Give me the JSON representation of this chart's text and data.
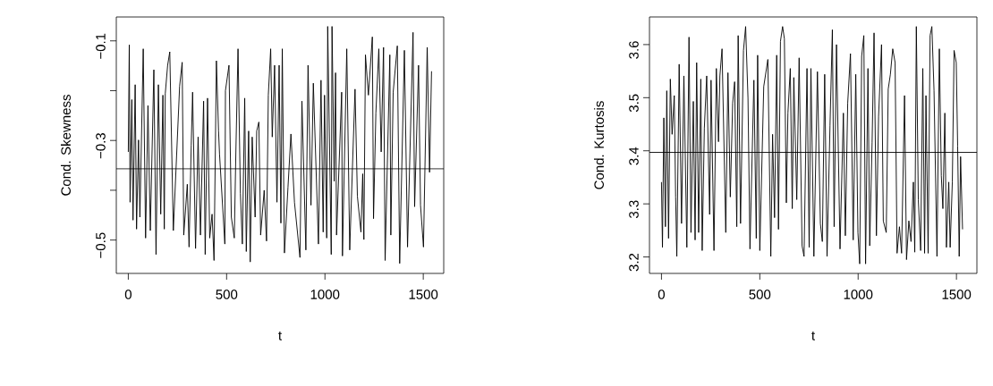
{
  "chart_data": [
    {
      "type": "line",
      "xlabel": "t",
      "ylabel": "Cond. Skewness",
      "color": "#000000",
      "line_style": "solid",
      "marker": "none",
      "xlim": [
        -61,
        1604
      ],
      "ylim": [
        -0.567,
        -0.052
      ],
      "xticks": [
        0,
        500,
        1000,
        1500
      ],
      "yticks": [
        {
          "value": -0.5,
          "label": "−0.5"
        },
        {
          "value": -0.4,
          "label": null
        },
        {
          "value": -0.3,
          "label": "−0.3"
        },
        {
          "value": -0.2,
          "label": null
        },
        {
          "value": -0.1,
          "label": "−0.1"
        }
      ],
      "ref_lines": [
        {
          "axis": "y",
          "value": -0.357
        }
      ],
      "x": [
        0,
        5,
        9,
        18,
        24,
        35,
        42,
        52,
        59,
        76,
        88,
        100,
        112,
        130,
        141,
        153,
        165,
        176,
        183,
        188,
        200,
        211,
        229,
        261,
        274,
        282,
        300,
        309,
        320,
        327,
        342,
        355,
        367,
        383,
        391,
        403,
        414,
        426,
        436,
        448,
        459,
        464,
        491,
        494,
        512,
        524,
        539,
        547,
        558,
        570,
        580,
        592,
        600,
        612,
        620,
        630,
        645,
        653,
        664,
        673,
        691,
        703,
        712,
        724,
        732,
        744,
        756,
        767,
        776,
        783,
        794,
        812,
        827,
        845,
        873,
        883,
        903,
        914,
        929,
        941,
        967,
        980,
        991,
        998,
        1009,
        1014,
        1032,
        1036,
        1047,
        1054,
        1059,
        1085,
        1089,
        1111,
        1126,
        1153,
        1165,
        1183,
        1192,
        1198,
        1206,
        1221,
        1241,
        1247,
        1259,
        1274,
        1286,
        1298,
        1306,
        1330,
        1335,
        1347,
        1368,
        1380,
        1404,
        1420,
        1448,
        1456,
        1476,
        1486,
        1501,
        1520,
        1532,
        1542
      ],
      "values": [
        -0.323,
        -0.108,
        -0.424,
        -0.218,
        -0.46,
        -0.188,
        -0.478,
        -0.299,
        -0.454,
        -0.116,
        -0.496,
        -0.23,
        -0.481,
        -0.158,
        -0.529,
        -0.188,
        -0.448,
        -0.209,
        -0.478,
        -0.206,
        -0.149,
        -0.122,
        -0.481,
        -0.191,
        -0.143,
        -0.49,
        -0.388,
        -0.514,
        -0.31,
        -0.203,
        -0.517,
        -0.293,
        -0.49,
        -0.221,
        -0.529,
        -0.215,
        -0.496,
        -0.448,
        -0.541,
        -0.14,
        -0.281,
        -0.328,
        -0.508,
        -0.2,
        -0.149,
        -0.454,
        -0.496,
        -0.323,
        -0.116,
        -0.406,
        -0.508,
        -0.215,
        -0.523,
        -0.281,
        -0.544,
        -0.293,
        -0.454,
        -0.281,
        -0.263,
        -0.49,
        -0.4,
        -0.502,
        -0.209,
        -0.116,
        -0.293,
        -0.149,
        -0.424,
        -0.149,
        -0.466,
        -0.116,
        -0.526,
        -0.394,
        -0.287,
        -0.424,
        -0.535,
        -0.221,
        -0.52,
        -0.149,
        -0.43,
        -0.185,
        -0.508,
        -0.179,
        -0.484,
        -0.209,
        -0.496,
        -0.071,
        -0.529,
        -0.071,
        -0.382,
        -0.164,
        -0.49,
        -0.203,
        -0.532,
        -0.116,
        -0.52,
        -0.197,
        -0.412,
        -0.484,
        -0.367,
        -0.499,
        -0.128,
        -0.209,
        -0.092,
        -0.457,
        -0.245,
        -0.116,
        -0.323,
        -0.113,
        -0.541,
        -0.128,
        -0.49,
        -0.203,
        -0.11,
        -0.547,
        -0.119,
        -0.514,
        -0.083,
        -0.433,
        -0.149,
        -0.43,
        -0.514,
        -0.113,
        -0.364,
        -0.161
      ]
    },
    {
      "type": "line",
      "xlabel": "t",
      "ylabel": "Cond. Kurtosis",
      "color": "#000000",
      "line_style": "solid",
      "marker": "none",
      "xlim": [
        -61,
        1604
      ],
      "ylim": [
        3.169,
        3.652
      ],
      "xticks": [
        0,
        500,
        1000,
        1500
      ],
      "yticks": [
        3.2,
        3.3,
        3.4,
        3.5,
        3.6
      ],
      "ref_lines": [
        {
          "axis": "y",
          "value": 3.397
        }
      ],
      "x": [
        0,
        5,
        12,
        20,
        27,
        36,
        45,
        54,
        65,
        72,
        78,
        90,
        102,
        114,
        129,
        140,
        150,
        162,
        171,
        179,
        189,
        200,
        207,
        218,
        230,
        245,
        252,
        267,
        279,
        290,
        297,
        308,
        327,
        338,
        350,
        362,
        372,
        383,
        390,
        402,
        417,
        428,
        440,
        450,
        470,
        482,
        489,
        500,
        520,
        541,
        556,
        565,
        575,
        586,
        595,
        605,
        616,
        625,
        635,
        643,
        655,
        665,
        673,
        688,
        700,
        715,
        725,
        740,
        751,
        760,
        775,
        793,
        808,
        818,
        830,
        842,
        857,
        869,
        878,
        890,
        908,
        925,
        935,
        947,
        961,
        975,
        988,
        999,
        1008,
        1018,
        1029,
        1038,
        1050,
        1059,
        1071,
        1081,
        1093,
        1104,
        1119,
        1128,
        1143,
        1153,
        1164,
        1176,
        1188,
        1198,
        1210,
        1221,
        1236,
        1246,
        1258,
        1269,
        1281,
        1288,
        1296,
        1306,
        1318,
        1329,
        1338,
        1345,
        1356,
        1366,
        1375,
        1386,
        1401,
        1413,
        1423,
        1431,
        1441,
        1449,
        1461,
        1468,
        1479,
        1488,
        1499,
        1506,
        1514,
        1521,
        1531
      ],
      "values": [
        3.341,
        3.218,
        3.462,
        3.257,
        3.513,
        3.235,
        3.535,
        3.431,
        3.504,
        3.313,
        3.201,
        3.563,
        3.263,
        3.541,
        3.218,
        3.614,
        3.246,
        3.493,
        3.232,
        3.566,
        3.246,
        3.535,
        3.212,
        3.443,
        3.541,
        3.28,
        3.533,
        3.212,
        3.555,
        3.417,
        3.541,
        3.592,
        3.246,
        3.547,
        3.313,
        3.49,
        3.53,
        3.257,
        3.617,
        3.263,
        3.589,
        3.634,
        3.499,
        3.215,
        3.533,
        3.235,
        3.58,
        3.212,
        3.521,
        3.572,
        3.201,
        3.431,
        3.274,
        3.58,
        3.252,
        3.606,
        3.634,
        3.611,
        3.302,
        3.471,
        3.555,
        3.291,
        3.538,
        3.308,
        3.575,
        3.221,
        3.201,
        3.555,
        3.218,
        3.555,
        3.201,
        3.549,
        3.263,
        3.229,
        3.544,
        3.201,
        3.448,
        3.628,
        3.257,
        3.6,
        3.215,
        3.471,
        3.24,
        3.49,
        3.583,
        3.232,
        3.544,
        3.246,
        3.187,
        3.578,
        3.617,
        3.187,
        3.555,
        3.221,
        3.415,
        3.622,
        3.24,
        3.465,
        3.6,
        3.268,
        3.246,
        3.516,
        3.544,
        3.592,
        3.566,
        3.207,
        3.257,
        3.207,
        3.504,
        3.195,
        3.268,
        3.229,
        3.341,
        3.209,
        3.634,
        3.308,
        3.212,
        3.555,
        3.207,
        3.504,
        3.207,
        3.617,
        3.634,
        3.513,
        3.201,
        3.592,
        3.353,
        3.291,
        3.471,
        3.218,
        3.341,
        3.218,
        3.341,
        3.589,
        3.566,
        3.409,
        3.201,
        3.389,
        3.252
      ]
    }
  ]
}
